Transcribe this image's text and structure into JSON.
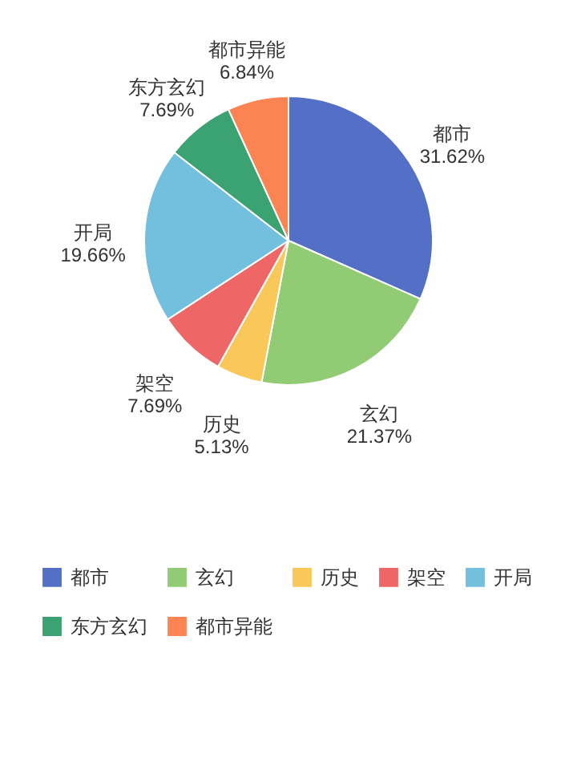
{
  "chart_data": {
    "type": "pie",
    "categories": [
      "都市",
      "玄幻",
      "历史",
      "架空",
      "开局",
      "东方玄幻",
      "都市异能"
    ],
    "values": [
      31.62,
      21.37,
      5.13,
      7.69,
      19.66,
      7.69,
      6.84
    ],
    "value_labels": [
      "31.62%",
      "21.37%",
      "5.13%",
      "7.69%",
      "19.66%",
      "7.69%",
      "6.84%"
    ],
    "colors": [
      "#5470c6",
      "#91cc75",
      "#fac858",
      "#ee6666",
      "#73c0de",
      "#3ba272",
      "#fc8452"
    ],
    "legend": "bottom"
  }
}
